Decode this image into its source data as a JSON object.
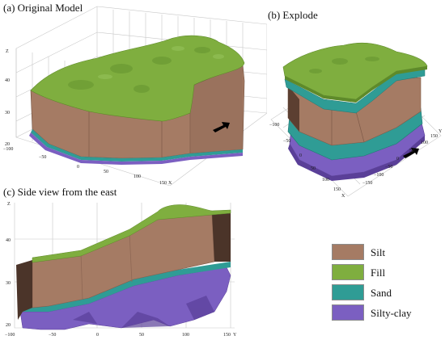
{
  "panels": {
    "a": {
      "title": "(a) Original Model",
      "z_ticks": [
        "Z",
        "40",
        "30",
        "20"
      ],
      "x_ticks": [
        "−100",
        "−50",
        "0",
        "50",
        "100",
        "150",
        "X"
      ]
    },
    "b": {
      "title": "(b) Explode",
      "y_ticks": [
        "−150",
        "−100",
        "−50",
        "0",
        "50",
        "100",
        "150",
        "Y"
      ],
      "x_ticks": [
        "−100",
        "−50",
        "0",
        "50",
        "100",
        "150",
        "X"
      ]
    },
    "c": {
      "title": "(c) Side view from the east",
      "z_ticks": [
        "Z",
        "40",
        "30",
        "20"
      ],
      "y_ticks": [
        "−100",
        "−50",
        "0",
        "50",
        "100",
        "150",
        "Y"
      ]
    }
  },
  "legend": [
    {
      "label": "Silt",
      "color": "#a57b64"
    },
    {
      "label": "Fill",
      "color": "#7fae3f"
    },
    {
      "label": "Sand",
      "color": "#2f9c95"
    },
    {
      "label": "Silty-clay",
      "color": "#7b5fc1"
    }
  ],
  "colors": {
    "silt": "#a57b64",
    "silt_dark": "#7e5a48",
    "fill": "#7fae3f",
    "fill_dark": "#5e8a2a",
    "sand": "#2f9c95",
    "clay": "#7b5fc1",
    "clay_dark": "#5a3f98",
    "grid": "#c8c8c8"
  }
}
